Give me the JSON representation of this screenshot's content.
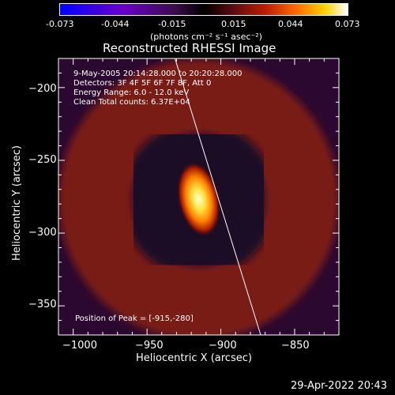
{
  "colorbar": {
    "ticks": [
      "-0.073",
      "-0.044",
      "-0.015",
      "0.015",
      "0.044",
      "0.073"
    ],
    "unit": "(photons cm⁻² s⁻¹ asec⁻²)",
    "range": [
      -0.073,
      0.073
    ]
  },
  "chart_data": {
    "type": "heatmap",
    "title": "Reconstructed RHESSI Image",
    "xlabel": "Heliocentric X (arcsec)",
    "ylabel": "Heliocentric Y (arcsec)",
    "xlim": [
      -1010,
      -820
    ],
    "ylim": [
      -370,
      -180
    ],
    "xticks": [
      -1000,
      -950,
      -900,
      -850
    ],
    "yticks": [
      -200,
      -250,
      -300,
      -350
    ],
    "xtick_labels": [
      "−1000",
      "−950",
      "−900",
      "−850"
    ],
    "ytick_labels": [
      "−200",
      "−250",
      "−300",
      "−350"
    ],
    "peak": {
      "x": -915,
      "y": -280
    },
    "ring": {
      "center": [
        -915,
        -277
      ],
      "radius": 70,
      "width": 25
    },
    "limb": [
      [
        -932,
        -177
      ],
      [
        -873,
        -370
      ]
    ],
    "annotations": [
      "9-May-2005 20:14:28.000 to 20:20:28.000",
      "Detectors: 3F 4F 5F 6F 7F 8F, Att 0",
      "Energy Range: 6.0 - 12.0 keV",
      "Clean     Total counts: 6.37E+04"
    ],
    "peak_label": "Position of Peak = [-915,-280]"
  },
  "footer": {
    "date": "29-Apr-2022 20:43"
  }
}
